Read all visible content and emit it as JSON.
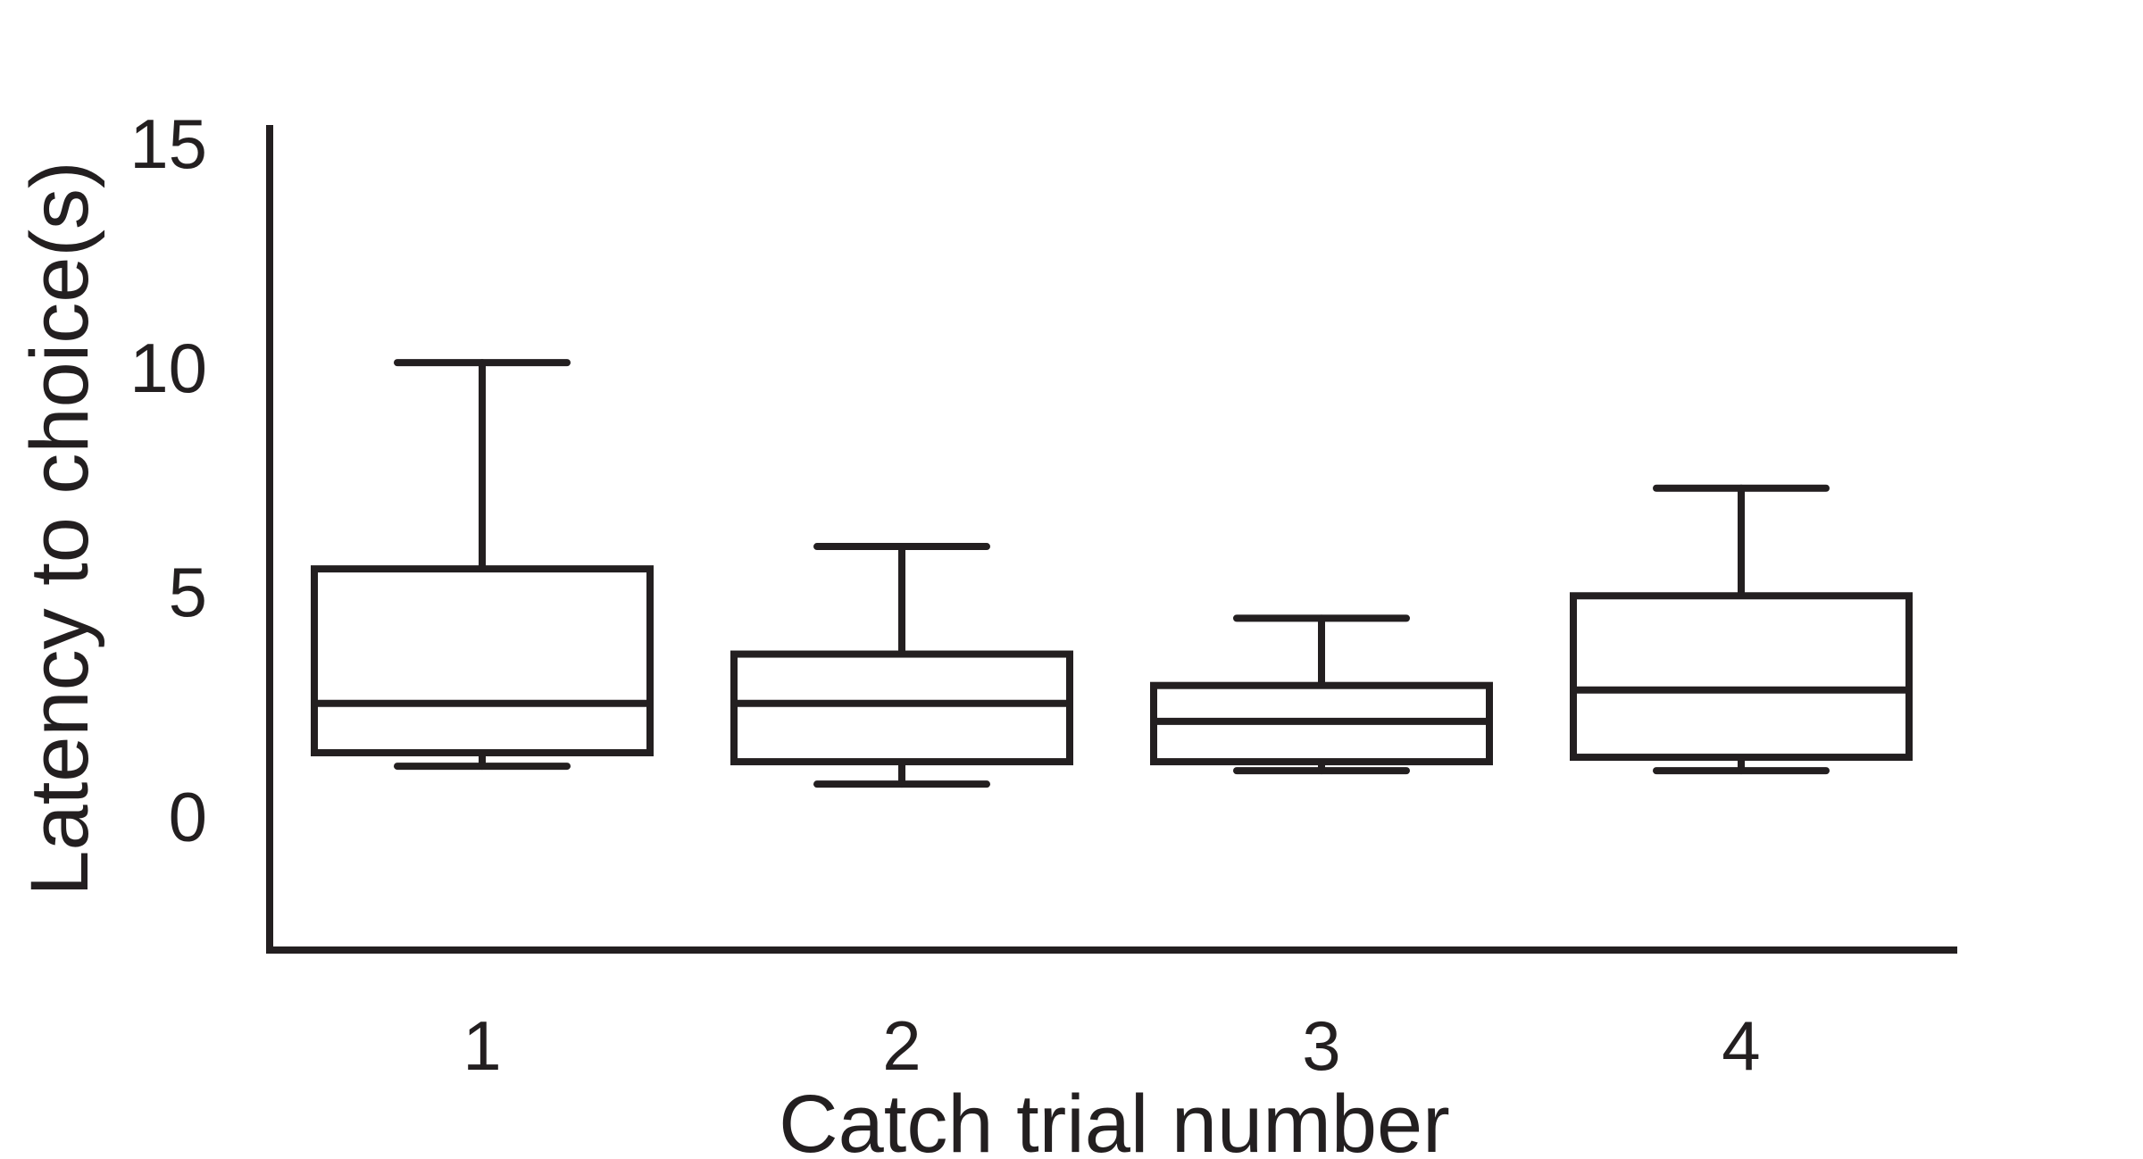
{
  "chart_data": {
    "type": "box",
    "title": "",
    "xlabel": "Catch trial number",
    "ylabel": "Latency to choice(s)",
    "ylim": [
      -3.0,
      15.2
    ],
    "yticks": [
      "0",
      "5",
      "10",
      "15"
    ],
    "ytick_values": [
      0,
      5,
      10,
      15
    ],
    "categories": [
      "1",
      "2",
      "3",
      "4"
    ],
    "boxes": [
      {
        "category": "1",
        "whisker_low": 1.1,
        "q1": 1.4,
        "median": 2.5,
        "q3": 5.5,
        "whisker_high": 10.1
      },
      {
        "category": "2",
        "whisker_low": 0.7,
        "q1": 1.2,
        "median": 2.5,
        "q3": 3.6,
        "whisker_high": 6.0
      },
      {
        "category": "3",
        "whisker_low": 1.0,
        "q1": 1.2,
        "median": 2.1,
        "q3": 2.9,
        "whisker_high": 4.4
      },
      {
        "category": "4",
        "whisker_low": 1.0,
        "q1": 1.3,
        "median": 2.8,
        "q3": 4.9,
        "whisker_high": 7.3
      }
    ],
    "grid": false,
    "legend": "none",
    "colors": {
      "stroke": "#231f20",
      "fill": "#ffffff"
    }
  }
}
